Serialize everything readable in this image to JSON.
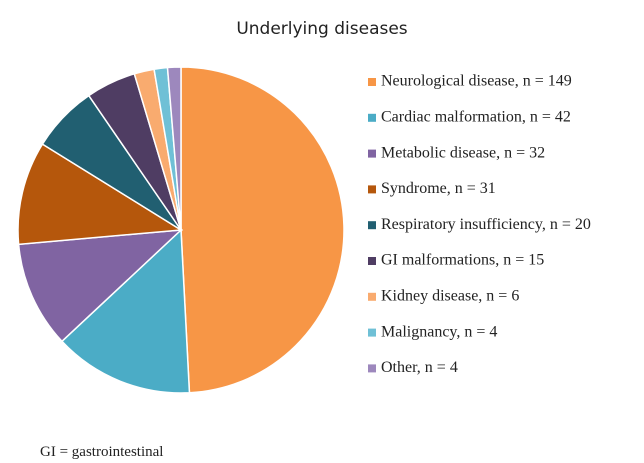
{
  "chart_data": {
    "type": "pie",
    "title": "Underlying diseases",
    "categories": [
      "Neurological disease, n = 149",
      "Cardiac malformation, n = 42",
      "Metabolic disease, n = 32",
      "Syndrome, n = 31",
      "Respiratory insufficiency, n = 20",
      "GI malformations, n = 15",
      "Kidney disease, n = 6",
      "Malignancy, n = 4",
      "Other, n = 4"
    ],
    "values": [
      149,
      42,
      32,
      31,
      20,
      15,
      6,
      4,
      4
    ],
    "colors": [
      "#f79646",
      "#4bacc6",
      "#8064a2",
      "#b5570c",
      "#215f71",
      "#4f3d63",
      "#f9ab6f",
      "#6fc0d6",
      "#9d88bd"
    ],
    "legend": "right",
    "annotation": "GI = gastrointestinal"
  }
}
